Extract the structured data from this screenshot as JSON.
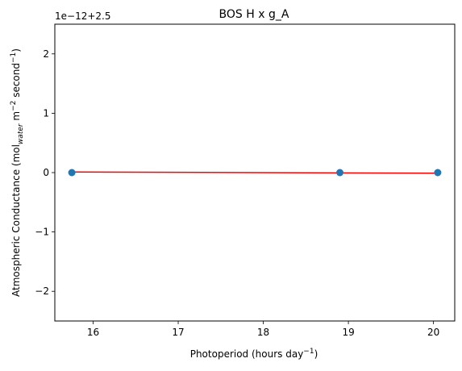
{
  "chart_data": {
    "type": "scatter",
    "title": "BOS H x g_A",
    "xlabel": "Photoperiod (hours day",
    "xlabel_sup": "−1",
    "xlabel_close": ")",
    "ylabel_part1": "Atmospheric Conductance (mol",
    "ylabel_sub": "water",
    "ylabel_part2": " m",
    "ylabel_sup1": "−2",
    "ylabel_part3": " second",
    "ylabel_sup2": "−1",
    "ylabel_close": ")",
    "offset_text": "1e−12+2.5",
    "xlim": [
      15.55,
      20.25
    ],
    "ylim": [
      -2.5,
      2.5
    ],
    "x_ticks": [
      16,
      17,
      18,
      19,
      20
    ],
    "y_ticks": [
      -2,
      -1,
      0,
      1,
      2
    ],
    "y_tick_labels": [
      "−2",
      "−1",
      "0",
      "1",
      "2"
    ],
    "points": {
      "x": [
        15.75,
        18.9,
        20.05
      ],
      "y": [
        0,
        0,
        0
      ],
      "color": "#1f77b4"
    },
    "fit_line": {
      "x": [
        15.75,
        20.05
      ],
      "y": [
        0.01,
        -0.01
      ],
      "color": "#ff0000"
    },
    "grid": false
  }
}
